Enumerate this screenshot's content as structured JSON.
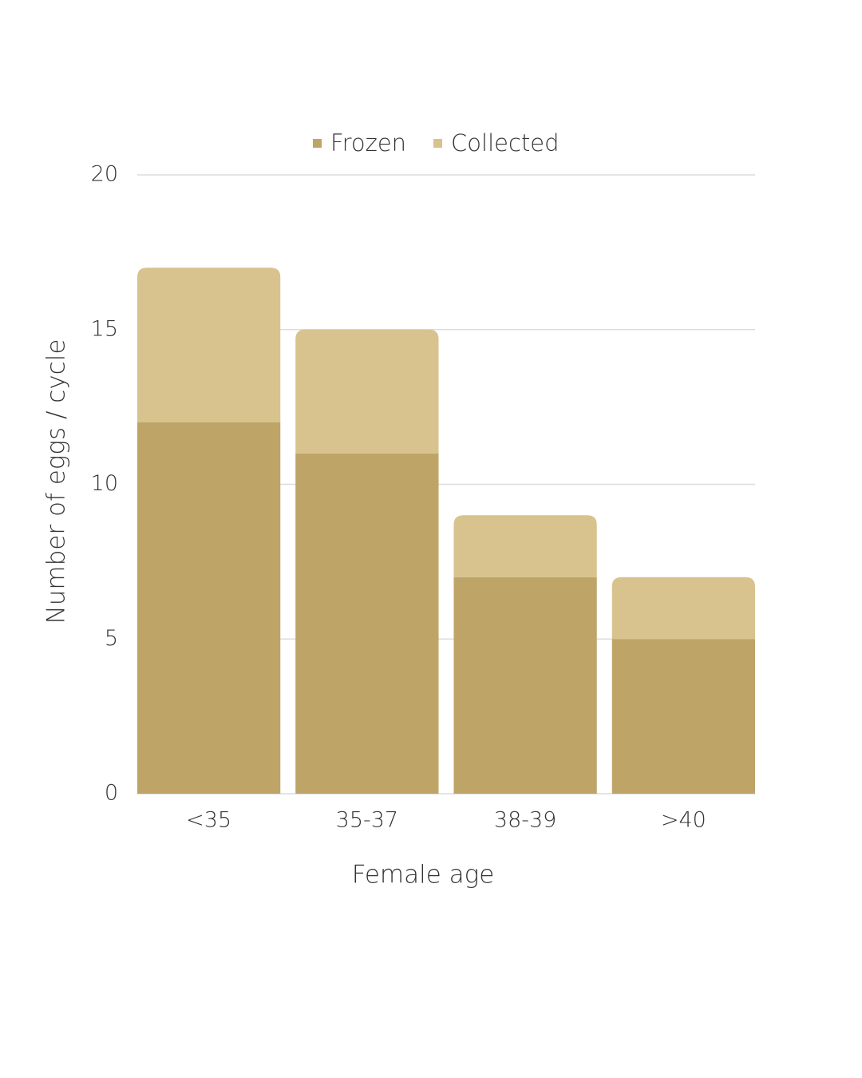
{
  "chart_data": {
    "type": "stacked_bar",
    "x_label": "Female age",
    "y_label": "Number of eggs / cycle",
    "categories": [
      "<35",
      "35-37",
      "38-39",
      ">40"
    ],
    "series": [
      {
        "name": "Frozen",
        "color": "#bfa468",
        "values": [
          12,
          11,
          7,
          5
        ]
      },
      {
        "name": "Collected",
        "color": "#d8c28e",
        "values": [
          5,
          4,
          2,
          2
        ]
      }
    ],
    "ylim": [
      0,
      20
    ],
    "yticks": [
      0,
      5,
      10,
      15,
      20
    ],
    "grid": true,
    "legend": "top"
  }
}
